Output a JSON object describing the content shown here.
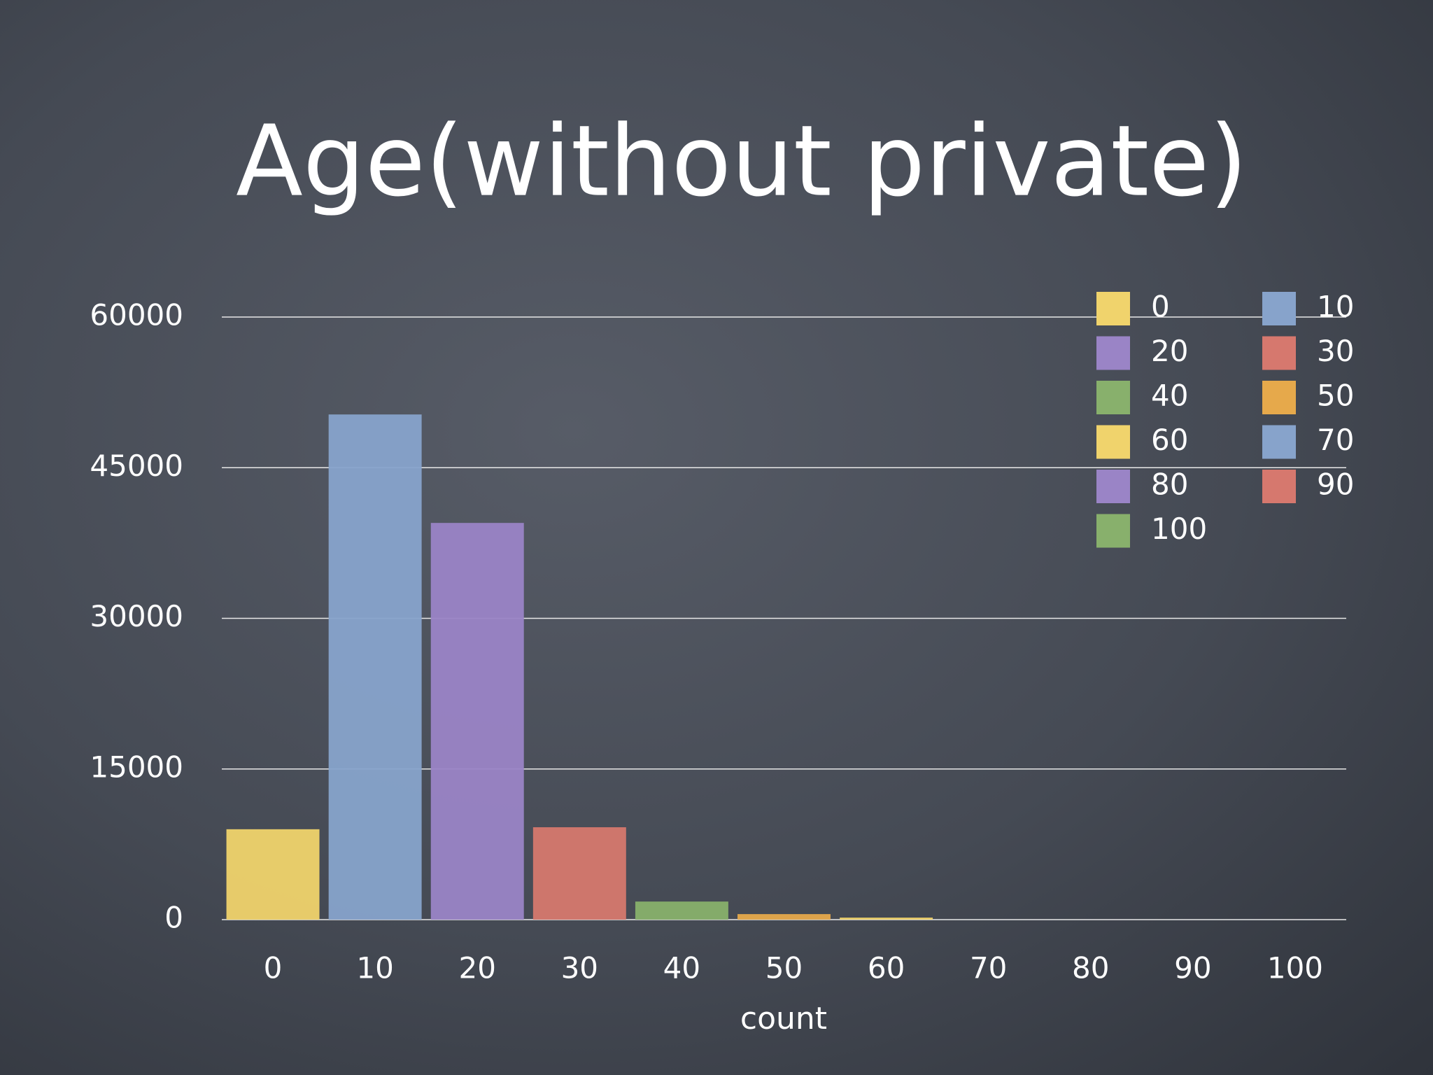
{
  "chart_data": {
    "type": "bar",
    "title": "Age(without private)",
    "x_label": "count",
    "categories": [
      "0",
      "10",
      "20",
      "30",
      "40",
      "50",
      "60",
      "70",
      "80",
      "90",
      "100"
    ],
    "values": [
      9000,
      50300,
      39500,
      9200,
      1800,
      550,
      200,
      0,
      0,
      0,
      0
    ],
    "colors": [
      "#f0d36c",
      "#87a3cb",
      "#9a84c6",
      "#d6786e",
      "#88b06c",
      "#e6a94b",
      "#f0d36c",
      "#87a3cb",
      "#9a84c6",
      "#d6786e",
      "#88b06c"
    ],
    "ylim": [
      0,
      60000
    ],
    "yticks": [
      0,
      15000,
      30000,
      45000,
      60000
    ],
    "grid": true,
    "legend": "top-right"
  }
}
